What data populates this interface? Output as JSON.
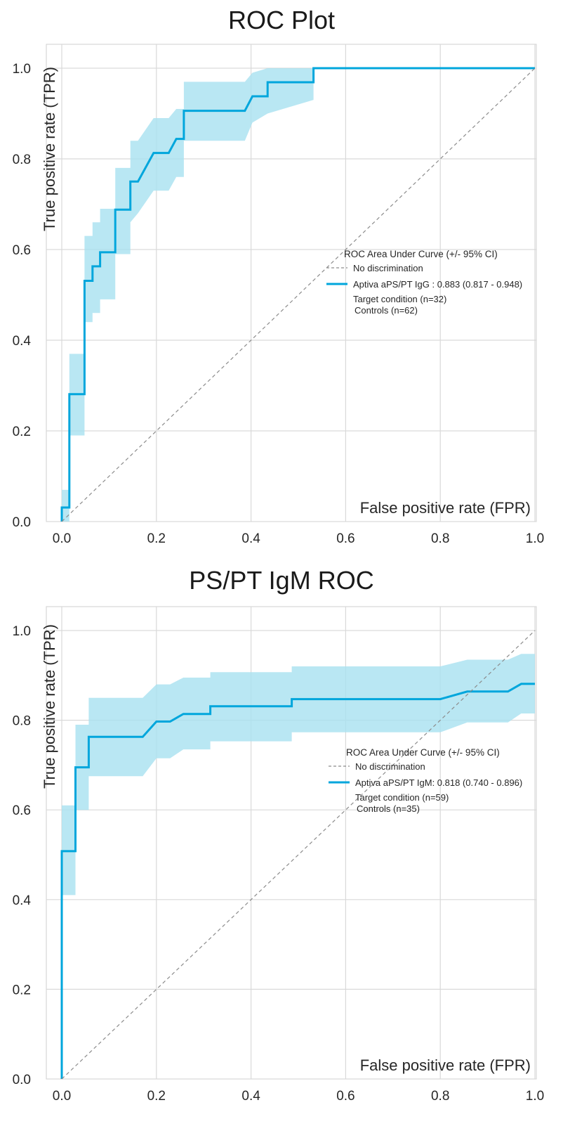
{
  "charts": [
    {
      "title": "ROC Plot",
      "xlabel": "False positive rate (FPR)",
      "ylabel": "True positive rate (TPR)",
      "legend": {
        "title": "ROC Area Under Curve (+/- 95% CI)",
        "no_discrimination": "No discrimination",
        "series": "Aptiva aPS/PT IgG : 0.883 (0.817 - 0.948)",
        "target": "Target condition (n=32)",
        "controls": "Controls (n=62)"
      },
      "tick_labels": {
        "x": [
          "0.0",
          "0.2",
          "0.4",
          "0.6",
          "0.8",
          "1.0"
        ],
        "y": [
          "0.0",
          "0.2",
          "0.4",
          "0.6",
          "0.8",
          "1.0"
        ]
      }
    },
    {
      "title": "PS/PT IgM ROC",
      "xlabel": "False positive rate (FPR)",
      "ylabel": "True positive rate (TPR)",
      "legend": {
        "title": "ROC Area Under Curve (+/- 95% CI)",
        "no_discrimination": "No discrimination",
        "series": "Aptiva aPS/PT IgM: 0.818 (0.740 - 0.896)",
        "target": "Target condition (n=59)",
        "controls": "Controls (n=35)"
      },
      "tick_labels": {
        "x": [
          "0.0",
          "0.2",
          "0.4",
          "0.6",
          "0.8",
          "1.0"
        ],
        "y": [
          "0.0",
          "0.2",
          "0.4",
          "0.6",
          "0.8",
          "1.0"
        ]
      }
    }
  ],
  "colors": {
    "line": "#00a6dc",
    "band": "#a8e1f0",
    "grid": "#d9d9d9",
    "diagonal": "#8c8c8c"
  },
  "chart_data": [
    {
      "type": "line",
      "title": "ROC Plot",
      "xlabel": "False positive rate (FPR)",
      "ylabel": "True positive rate (TPR)",
      "xlim": [
        0,
        1
      ],
      "ylim": [
        0,
        1
      ],
      "grid": true,
      "legend_position": "center-right",
      "series": [
        {
          "name": "Aptiva aPS/PT IgG : 0.883 (0.817 - 0.948)",
          "kind": "step",
          "x": [
            0,
            0,
            0.016,
            0.016,
            0.048,
            0.048,
            0.065,
            0.065,
            0.081,
            0.081,
            0.113,
            0.113,
            0.145,
            0.145,
            0.161,
            0.194,
            0.226,
            0.242,
            0.242,
            0.258,
            0.258,
            0.387,
            0.403,
            0.403,
            0.435,
            0.435,
            0.532,
            0.532,
            1.0
          ],
          "y": [
            0,
            0.031,
            0.031,
            0.281,
            0.281,
            0.531,
            0.531,
            0.563,
            0.563,
            0.594,
            0.594,
            0.688,
            0.688,
            0.75,
            0.75,
            0.813,
            0.813,
            0.844,
            0.844,
            0.844,
            0.906,
            0.906,
            0.938,
            0.938,
            0.938,
            0.969,
            0.969,
            1.0,
            1.0
          ]
        },
        {
          "name": "No discrimination",
          "kind": "dashed",
          "x": [
            0,
            1
          ],
          "y": [
            0,
            1
          ]
        }
      ],
      "ci_band": {
        "x": [
          0,
          0,
          0.016,
          0.016,
          0.048,
          0.048,
          0.065,
          0.065,
          0.081,
          0.081,
          0.113,
          0.113,
          0.145,
          0.145,
          0.161,
          0.194,
          0.226,
          0.242,
          0.258,
          0.258,
          0.387,
          0.403,
          0.435,
          0.532,
          0.532,
          1.0
        ],
        "lower": [
          0,
          0,
          0,
          0.19,
          0.19,
          0.44,
          0.44,
          0.46,
          0.46,
          0.49,
          0.49,
          0.59,
          0.59,
          0.66,
          0.68,
          0.73,
          0.73,
          0.76,
          0.76,
          0.84,
          0.84,
          0.88,
          0.9,
          0.93,
          1.0,
          1.0
        ],
        "upper": [
          0.07,
          0.07,
          0.07,
          0.37,
          0.37,
          0.63,
          0.63,
          0.66,
          0.66,
          0.69,
          0.69,
          0.78,
          0.78,
          0.84,
          0.84,
          0.89,
          0.89,
          0.91,
          0.91,
          0.97,
          0.97,
          0.99,
          1.0,
          1.0,
          1.0,
          1.0
        ]
      },
      "annotations": [
        "ROC Area Under Curve (+/- 95% CI)",
        "Target condition (n=32)",
        "Controls (n=62)"
      ]
    },
    {
      "type": "line",
      "title": "PS/PT IgM ROC",
      "xlabel": "False positive rate (FPR)",
      "ylabel": "True positive rate (TPR)",
      "xlim": [
        0,
        1
      ],
      "ylim": [
        0,
        1
      ],
      "grid": true,
      "legend_position": "center-right",
      "series": [
        {
          "name": "Aptiva aPS/PT IgM: 0.818 (0.740 - 0.896)",
          "kind": "step",
          "x": [
            0,
            0,
            0.029,
            0.029,
            0.057,
            0.057,
            0.171,
            0.2,
            0.229,
            0.257,
            0.314,
            0.314,
            0.486,
            0.486,
            0.8,
            0.857,
            0.943,
            0.971,
            1.0
          ],
          "y": [
            0,
            0.508,
            0.508,
            0.695,
            0.695,
            0.763,
            0.763,
            0.797,
            0.797,
            0.814,
            0.814,
            0.831,
            0.831,
            0.847,
            0.847,
            0.864,
            0.864,
            0.881,
            0.881
          ]
        },
        {
          "name": "No discrimination",
          "kind": "dashed",
          "x": [
            0,
            1
          ],
          "y": [
            0,
            1
          ]
        }
      ],
      "ci_band": {
        "x": [
          0,
          0,
          0.029,
          0.029,
          0.057,
          0.057,
          0.171,
          0.2,
          0.229,
          0.257,
          0.314,
          0.314,
          0.486,
          0.486,
          0.8,
          0.857,
          0.943,
          0.971,
          1.0,
          1.0
        ],
        "lower": [
          0.41,
          0.41,
          0.41,
          0.6,
          0.6,
          0.675,
          0.675,
          0.715,
          0.715,
          0.735,
          0.735,
          0.753,
          0.753,
          0.773,
          0.773,
          0.795,
          0.795,
          0.815,
          0.815,
          0.815
        ],
        "upper": [
          0.61,
          0.61,
          0.61,
          0.79,
          0.79,
          0.85,
          0.85,
          0.88,
          0.88,
          0.895,
          0.895,
          0.907,
          0.907,
          0.92,
          0.92,
          0.935,
          0.935,
          0.948,
          0.948,
          1.0
        ]
      },
      "annotations": [
        "ROC Area Under Curve (+/- 95% CI)",
        "Target condition (n=59)",
        "Controls (n=35)"
      ]
    }
  ]
}
